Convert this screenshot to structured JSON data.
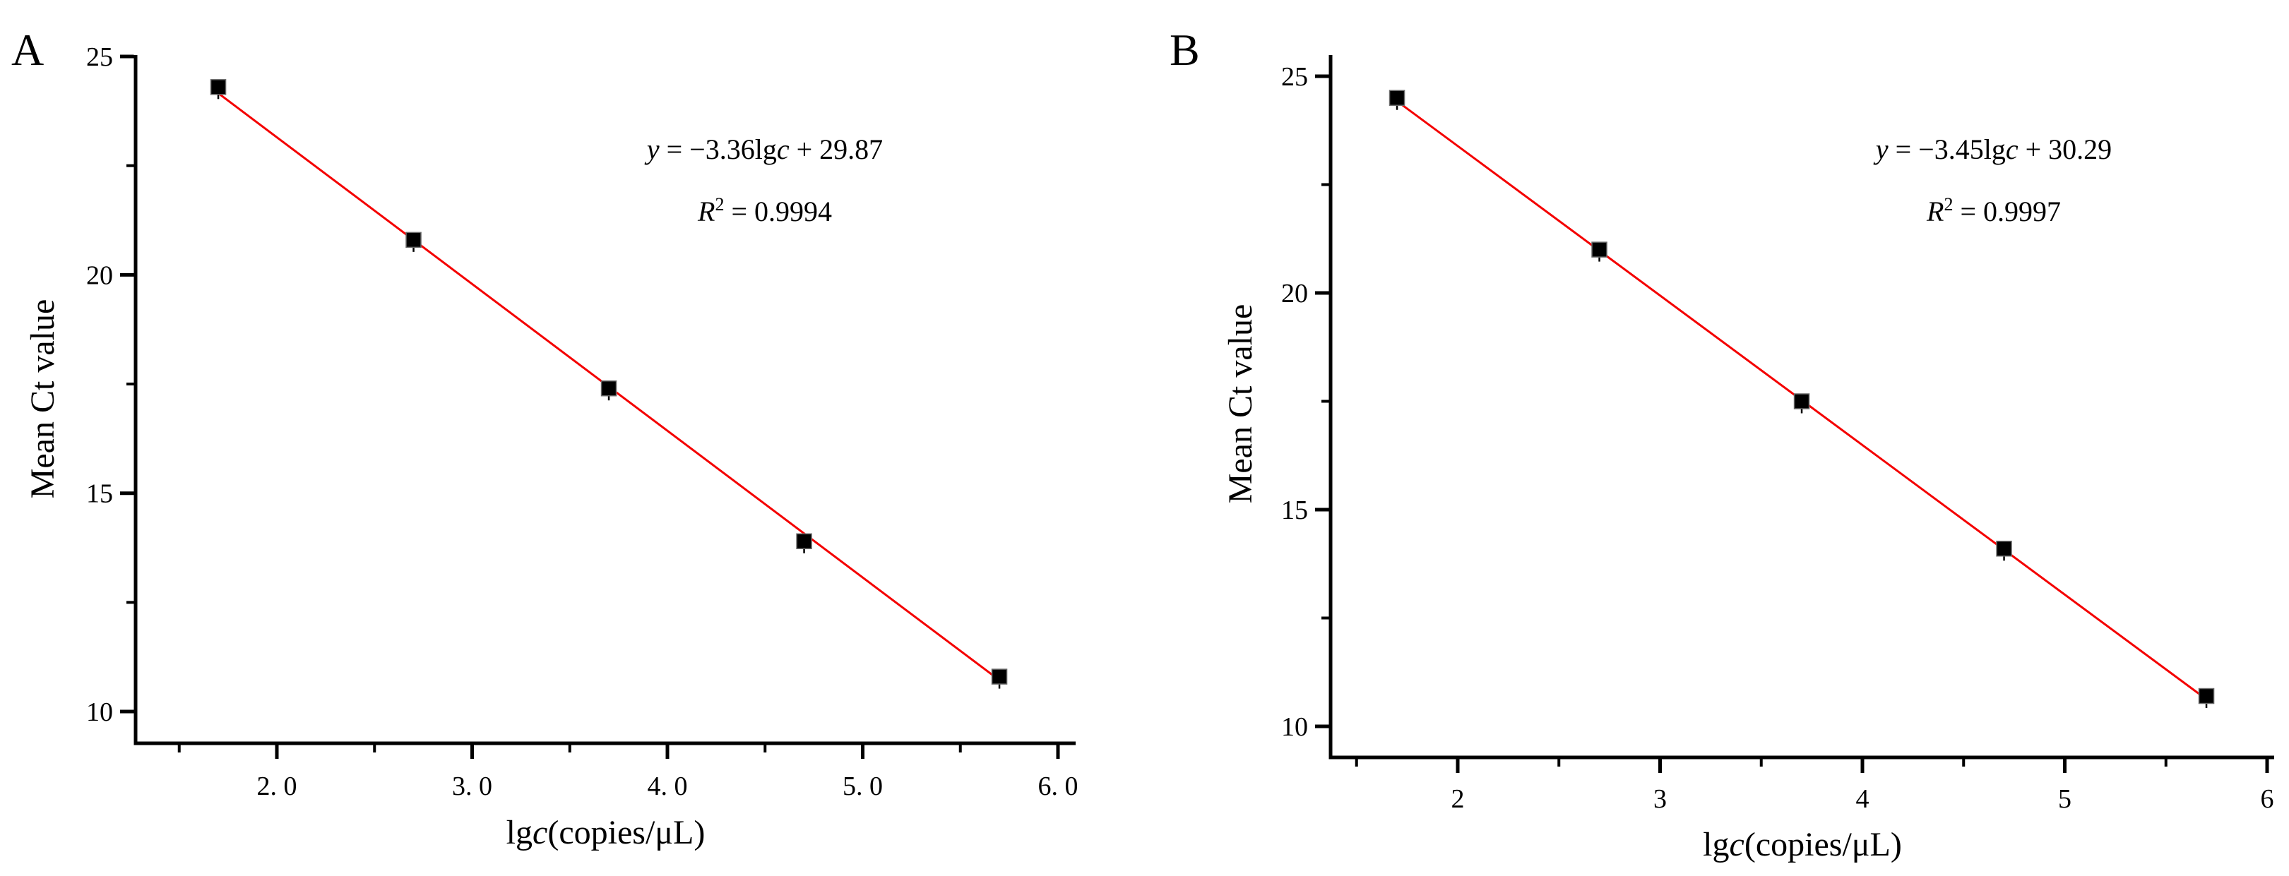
{
  "figure": {
    "background": "#ffffff",
    "text_color": "#000000",
    "trendline_color": "#f40000",
    "marker_color": "#000000"
  },
  "chart_data": [
    {
      "type": "scatter",
      "panel_label": "A",
      "title": "",
      "xlabel": "lgc(copies/μL)",
      "xlabel_parts": [
        {
          "t": "lg"
        },
        {
          "t": "c",
          "i": true
        },
        {
          "t": "(copies/μL)"
        }
      ],
      "ylabel": "Mean Ct value",
      "x": [
        1.7,
        2.7,
        3.7,
        4.7,
        5.7
      ],
      "y": [
        24.3,
        20.8,
        17.4,
        13.9,
        10.8
      ],
      "xlim": [
        1.28,
        6.09
      ],
      "ylim": [
        9.27,
        25.03
      ],
      "x_ticks": {
        "major": [
          2,
          3,
          4,
          5,
          6
        ],
        "labels": [
          "2. 0",
          "3. 0",
          "4. 0",
          "5. 0",
          "6. 0"
        ],
        "minor": [
          1.5,
          2.5,
          3.5,
          4.5,
          5.5
        ]
      },
      "y_ticks": {
        "major": [
          25,
          20,
          15,
          10
        ],
        "labels": [
          "25",
          "20",
          "15",
          "10"
        ],
        "minor": [
          22.5,
          17.5,
          12.5
        ]
      },
      "grid": false,
      "legend": null,
      "marker": {
        "shape": "square",
        "color": "#000000"
      },
      "trendline": {
        "slope": -3.36,
        "intercept": 29.87,
        "x_start": 1.7,
        "x_end": 5.7,
        "color": "#f40000",
        "equation_text": "y = −3.36lgc + 29.87",
        "equation_parts": [
          {
            "t": "y",
            "i": true
          },
          {
            "t": " = −3.36lg"
          },
          {
            "t": "c",
            "i": true
          },
          {
            "t": " + 29.87"
          }
        ],
        "r2_text": "R² = 0.9994",
        "r2_parts": [
          {
            "t": "R",
            "i": true
          },
          {
            "t": "2",
            "sup": true
          },
          {
            "t": " = 0.9994"
          }
        ]
      }
    },
    {
      "type": "scatter",
      "panel_label": "B",
      "title": "",
      "xlabel": "lgc(copies/μL)",
      "xlabel_parts": [
        {
          "t": "lg"
        },
        {
          "t": "c",
          "i": true
        },
        {
          "t": "(copies/μL)"
        }
      ],
      "ylabel": "Mean Ct value",
      "x": [
        1.7,
        2.7,
        3.7,
        4.7,
        5.7
      ],
      "y": [
        24.5,
        21.0,
        17.5,
        14.1,
        10.7
      ],
      "xlim": [
        1.37,
        6.03
      ],
      "ylim": [
        9.28,
        25.49
      ],
      "x_ticks": {
        "major": [
          2,
          3,
          4,
          5,
          6
        ],
        "labels": [
          "2",
          "3",
          "4",
          "5",
          "6"
        ],
        "minor": [
          1.5,
          2.5,
          3.5,
          4.5,
          5.5
        ]
      },
      "y_ticks": {
        "major": [
          25,
          20,
          15,
          10
        ],
        "labels": [
          "25",
          "20",
          "15",
          "10"
        ],
        "minor": [
          22.5,
          17.5,
          12.5
        ]
      },
      "grid": false,
      "legend": null,
      "marker": {
        "shape": "square",
        "color": "#000000"
      },
      "trendline": {
        "slope": -3.45,
        "intercept": 30.29,
        "x_start": 1.7,
        "x_end": 5.7,
        "color": "#f40000",
        "equation_text": "y = −3.45lgc + 30.29",
        "equation_parts": [
          {
            "t": "y",
            "i": true
          },
          {
            "t": " = −3.45lg"
          },
          {
            "t": "c",
            "i": true
          },
          {
            "t": " + 30.29"
          }
        ],
        "r2_text": "R² = 0.9997",
        "r2_parts": [
          {
            "t": "R",
            "i": true
          },
          {
            "t": "2",
            "sup": true
          },
          {
            "t": " = 0.9997"
          }
        ]
      }
    }
  ]
}
